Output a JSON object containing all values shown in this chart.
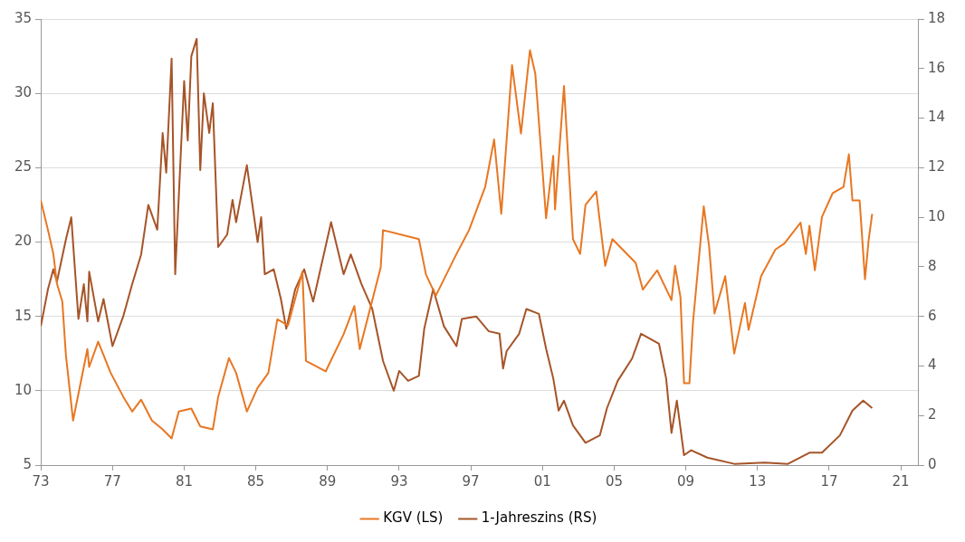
{
  "chart_data": {
    "type": "line",
    "xlim": [
      1973,
      2022
    ],
    "xticks": [
      {
        "value": 1973,
        "label": "73"
      },
      {
        "value": 1977,
        "label": "77"
      },
      {
        "value": 1981,
        "label": "81"
      },
      {
        "value": 1985,
        "label": "85"
      },
      {
        "value": 1989,
        "label": "89"
      },
      {
        "value": 1993,
        "label": "93"
      },
      {
        "value": 1997,
        "label": "97"
      },
      {
        "value": 2001,
        "label": "01"
      },
      {
        "value": 2005,
        "label": "05"
      },
      {
        "value": 2009,
        "label": "09"
      },
      {
        "value": 2013,
        "label": "13"
      },
      {
        "value": 2017,
        "label": "17"
      },
      {
        "value": 2021,
        "label": "21"
      }
    ],
    "ylim": [
      5,
      35
    ],
    "yticks": [
      5,
      10,
      15,
      20,
      25,
      30,
      35
    ],
    "y2lim": [
      0,
      18
    ],
    "y2ticks": [
      0,
      2,
      4,
      6,
      8,
      10,
      12,
      14,
      16,
      18
    ],
    "grid": "y",
    "legend": "bottom",
    "marker": "none",
    "line_style": "solid",
    "series": [
      {
        "name": "KGV (LS)",
        "color": "#e87722",
        "x": [
          1973.0,
          1973.4,
          1973.7,
          1973.9,
          1974.2,
          1974.4,
          1974.8,
          1975.2,
          1975.6,
          1975.7,
          1976.2,
          1976.9,
          1977.6,
          1978.1,
          1978.6,
          1979.2,
          1979.8,
          1980.3,
          1980.7,
          1981.4,
          1981.9,
          1982.6,
          1982.9,
          1983.5,
          1983.9,
          1984.5,
          1985.1,
          1985.7,
          1986.2,
          1986.8,
          1987.6,
          1987.8,
          1988.9,
          1989.9,
          1990.5,
          1990.8,
          1991.97,
          1992.1,
          1994.1,
          1994.5,
          1995.05,
          1996.2,
          1996.9,
          1997.8,
          1998.3,
          1998.7,
          1999.3,
          1999.8,
          2000.3,
          2000.6,
          2001.2,
          2001.6,
          2001.7,
          2002.2,
          2002.7,
          2003.1,
          2003.4,
          2004.0,
          2004.5,
          2004.9,
          2006.2,
          2006.6,
          2007.4,
          2008.2,
          2008.4,
          2008.7,
          2008.9,
          2009.2,
          2009.4,
          2010.0,
          2010.3,
          2010.6,
          2011.2,
          2011.7,
          2012.3,
          2012.5,
          2013.2,
          2014.0,
          2014.5,
          2015.4,
          2015.7,
          2015.9,
          2016.2,
          2016.6,
          2017.2,
          2017.8,
          2018.1,
          2018.3,
          2018.7,
          2019.0,
          2019.2,
          2019.4
        ],
        "values": [
          22.8,
          20.8,
          19.2,
          17.2,
          16.0,
          12.4,
          8.0,
          10.4,
          12.8,
          11.6,
          13.3,
          11.2,
          9.6,
          8.6,
          9.4,
          8.0,
          7.4,
          6.8,
          8.6,
          8.8,
          7.6,
          7.4,
          9.6,
          12.2,
          11.2,
          8.6,
          10.2,
          11.2,
          14.8,
          14.4,
          18.0,
          12.0,
          11.3,
          13.8,
          15.7,
          12.8,
          18.3,
          20.8,
          20.2,
          17.8,
          16.4,
          19.2,
          20.8,
          23.7,
          26.9,
          21.9,
          31.9,
          27.3,
          32.9,
          31.3,
          21.6,
          25.8,
          22.2,
          30.5,
          20.2,
          19.2,
          22.5,
          23.4,
          18.4,
          20.2,
          18.6,
          16.8,
          18.1,
          16.1,
          18.4,
          16.3,
          10.5,
          10.5,
          14.6,
          22.4,
          19.7,
          15.2,
          17.7,
          12.5,
          15.9,
          14.1,
          17.7,
          19.5,
          19.9,
          21.3,
          19.2,
          21.1,
          18.1,
          21.7,
          23.3,
          23.7,
          25.9,
          22.8,
          22.8,
          17.5,
          20.1,
          21.9
        ]
      },
      {
        "name": "1-Jahreszins (RS)",
        "color": "#a65428",
        "axis": "y2",
        "x": [
          1973.0,
          1973.4,
          1973.7,
          1973.9,
          1974.4,
          1974.7,
          1975.1,
          1975.4,
          1975.6,
          1975.7,
          1976.2,
          1976.5,
          1977.0,
          1977.6,
          1978.1,
          1978.6,
          1979.0,
          1979.5,
          1979.8,
          1980.0,
          1980.3,
          1980.5,
          1981.0,
          1981.2,
          1981.4,
          1981.7,
          1981.9,
          1982.1,
          1982.4,
          1982.6,
          1982.9,
          1983.4,
          1983.7,
          1983.9,
          1984.5,
          1985.1,
          1985.3,
          1985.5,
          1986.0,
          1986.4,
          1986.7,
          1987.2,
          1987.7,
          1988.2,
          1989.2,
          1989.9,
          1990.3,
          1990.9,
          1991.5,
          1992.1,
          1992.7,
          1993.0,
          1993.5,
          1994.1,
          1994.4,
          1994.9,
          1995.5,
          1996.2,
          1996.5,
          1997.3,
          1998.0,
          1998.6,
          1998.8,
          1999.0,
          1999.7,
          2000.1,
          2000.8,
          2001.2,
          2001.6,
          2001.9,
          2002.2,
          2002.7,
          2003.4,
          2004.2,
          2004.6,
          2005.2,
          2006.0,
          2006.5,
          2007.5,
          2007.9,
          2008.2,
          2008.5,
          2008.9,
          2009.3,
          2010.2,
          2011.7,
          2013.4,
          2014.7,
          2015.9,
          2016.6,
          2017.6,
          2018.3,
          2018.9,
          2019.4
        ],
        "values": [
          5.6,
          7.1,
          7.9,
          7.4,
          9.1,
          10.0,
          5.9,
          7.3,
          5.8,
          7.8,
          5.8,
          6.7,
          4.8,
          6.0,
          7.3,
          8.5,
          10.5,
          9.5,
          13.4,
          11.8,
          16.4,
          7.7,
          15.5,
          13.1,
          16.5,
          17.2,
          11.9,
          15.0,
          13.4,
          14.6,
          8.8,
          9.3,
          10.7,
          9.8,
          12.1,
          9.0,
          10.0,
          7.7,
          7.9,
          6.7,
          5.5,
          7.1,
          7.9,
          6.6,
          9.8,
          7.7,
          8.5,
          7.3,
          6.3,
          4.2,
          3.0,
          3.8,
          3.4,
          3.6,
          5.5,
          7.1,
          5.6,
          4.8,
          5.9,
          6.0,
          5.4,
          5.3,
          3.9,
          4.6,
          5.3,
          6.3,
          6.1,
          4.7,
          3.5,
          2.2,
          2.6,
          1.6,
          0.9,
          1.2,
          2.3,
          3.4,
          4.3,
          5.3,
          4.9,
          3.5,
          1.3,
          2.6,
          0.4,
          0.6,
          0.3,
          0.05,
          0.1,
          0.05,
          0.5,
          0.5,
          1.2,
          2.2,
          2.6,
          2.3
        ]
      }
    ]
  }
}
